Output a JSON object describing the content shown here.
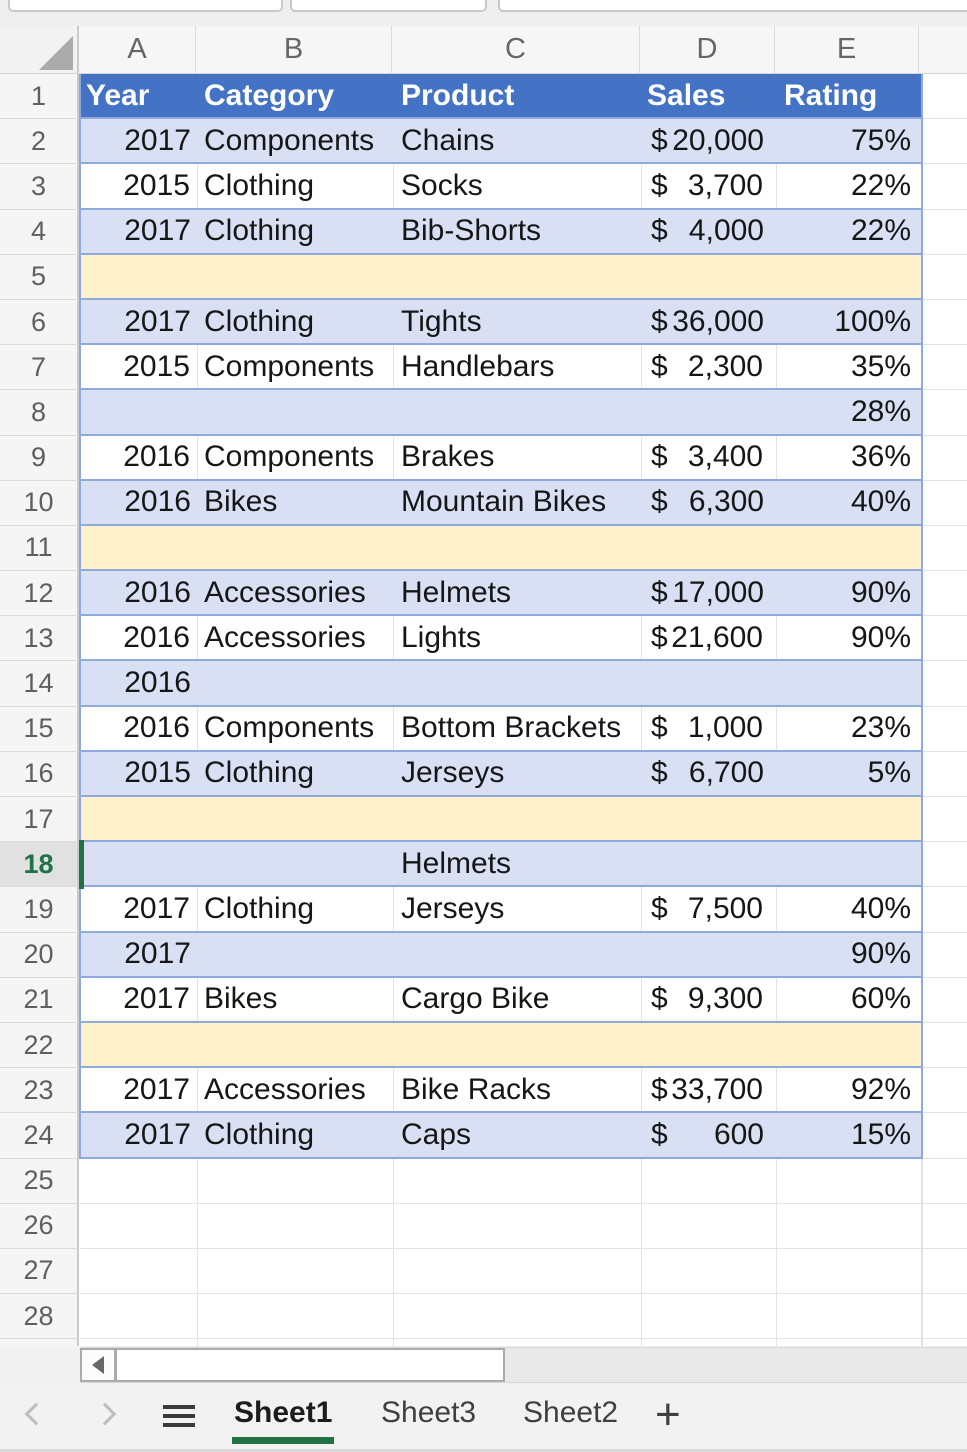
{
  "colors": {
    "table_header_fill": "#4472C4",
    "band_blue": "#D9E0F4",
    "band_yellow": "#FEF2CC",
    "table_border": "#8EA9DB",
    "selection_green": "#217346",
    "gridline": "#E3E3E3"
  },
  "column_letters": [
    "A",
    "B",
    "C",
    "D",
    "E"
  ],
  "table_header": {
    "year": "Year",
    "category": "Category",
    "product": "Product",
    "sales": "Sales",
    "rating": "Rating"
  },
  "rows": [
    {
      "n": 2,
      "band": "blue",
      "year": "2017",
      "category": "Components",
      "product": "Chains",
      "sales_symbol": "$",
      "sales_amount": "20,000",
      "rating": "75%"
    },
    {
      "n": 3,
      "band": "white",
      "year": "2015",
      "category": "Clothing",
      "product": "Socks",
      "sales_symbol": "$",
      "sales_amount": "3,700",
      "rating": "22%"
    },
    {
      "n": 4,
      "band": "blue",
      "year": "2017",
      "category": "Clothing",
      "product": "Bib-Shorts",
      "sales_symbol": "$",
      "sales_amount": "4,000",
      "rating": "22%"
    },
    {
      "n": 5,
      "band": "yellow"
    },
    {
      "n": 6,
      "band": "blue",
      "year": "2017",
      "category": "Clothing",
      "product": "Tights",
      "sales_symbol": "$",
      "sales_amount": "36,000",
      "rating": "100%"
    },
    {
      "n": 7,
      "band": "white",
      "year": "2015",
      "category": "Components",
      "product": "Handlebars",
      "sales_symbol": "$",
      "sales_amount": "2,300",
      "rating": "35%"
    },
    {
      "n": 8,
      "band": "blue",
      "rating": "28%"
    },
    {
      "n": 9,
      "band": "white",
      "year": "2016",
      "category": "Components",
      "product": "Brakes",
      "sales_symbol": "$",
      "sales_amount": "3,400",
      "rating": "36%"
    },
    {
      "n": 10,
      "band": "blue",
      "year": "2016",
      "category": "Bikes",
      "product": "Mountain Bikes",
      "sales_symbol": "$",
      "sales_amount": "6,300",
      "rating": "40%"
    },
    {
      "n": 11,
      "band": "yellow"
    },
    {
      "n": 12,
      "band": "blue",
      "year": "2016",
      "category": "Accessories",
      "product": "Helmets",
      "sales_symbol": "$",
      "sales_amount": "17,000",
      "rating": "90%"
    },
    {
      "n": 13,
      "band": "white",
      "year": "2016",
      "category": "Accessories",
      "product": "Lights",
      "sales_symbol": "$",
      "sales_amount": "21,600",
      "rating": "90%"
    },
    {
      "n": 14,
      "band": "blue",
      "year": "2016"
    },
    {
      "n": 15,
      "band": "white",
      "year": "2016",
      "category": "Components",
      "product": "Bottom Brackets",
      "sales_symbol": "$",
      "sales_amount": "1,000",
      "rating": "23%"
    },
    {
      "n": 16,
      "band": "blue",
      "year": "2015",
      "category": "Clothing",
      "product": "Jerseys",
      "sales_symbol": "$",
      "sales_amount": "6,700",
      "rating": "5%"
    },
    {
      "n": 17,
      "band": "yellow"
    },
    {
      "n": 18,
      "band": "blue",
      "product": "Helmets",
      "selected": true
    },
    {
      "n": 19,
      "band": "white",
      "year": "2017",
      "category": "Clothing",
      "product": "Jerseys",
      "sales_symbol": "$",
      "sales_amount": "7,500",
      "rating": "40%"
    },
    {
      "n": 20,
      "band": "blue",
      "year": "2017",
      "rating": "90%"
    },
    {
      "n": 21,
      "band": "white",
      "year": "2017",
      "category": "Bikes",
      "product": "Cargo Bike",
      "sales_symbol": "$",
      "sales_amount": "9,300",
      "rating": "60%"
    },
    {
      "n": 22,
      "band": "yellow"
    },
    {
      "n": 23,
      "band": "white",
      "year": "2017",
      "category": "Accessories",
      "product": "Bike Racks",
      "sales_symbol": "$",
      "sales_amount": "33,700",
      "rating": "92%"
    },
    {
      "n": 24,
      "band": "blue",
      "year": "2017",
      "category": "Clothing",
      "product": "Caps",
      "sales_symbol": "$",
      "sales_amount": "600",
      "rating": "15%"
    }
  ],
  "empty_row_numbers": [
    25,
    26,
    27,
    28
  ],
  "selection": {
    "active_row": 18
  },
  "sheet_bar": {
    "tabs": [
      {
        "label": "Sheet1",
        "active": true
      },
      {
        "label": "Sheet3",
        "active": false
      },
      {
        "label": "Sheet2",
        "active": false
      }
    ],
    "add_button": "+"
  }
}
